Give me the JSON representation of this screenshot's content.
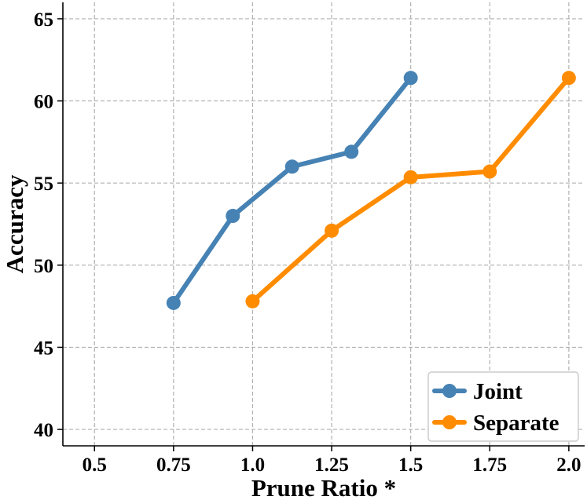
{
  "chart_data": {
    "type": "line",
    "xlabel": "Prune Ratio *",
    "ylabel": "Accuracy",
    "xlim": [
      0.4,
      2.05
    ],
    "ylim": [
      39.0,
      66.0
    ],
    "xticks": [
      0.5,
      0.75,
      1.0,
      1.25,
      1.5,
      1.75,
      2.0
    ],
    "xtick_labels": [
      "0.5",
      "0.75",
      "1.0",
      "1.25",
      "1.5",
      "1.75",
      "2.0"
    ],
    "yticks": [
      40,
      45,
      50,
      55,
      60,
      65
    ],
    "ytick_labels": [
      "40",
      "45",
      "50",
      "55",
      "60",
      "65"
    ],
    "grid": true,
    "legend_position": "bottom-right",
    "series": [
      {
        "name": "Joint",
        "color": "#4682B4",
        "x": [
          0.75,
          0.9375,
          1.125,
          1.3125,
          1.5
        ],
        "y": [
          47.7,
          53.0,
          56.0,
          56.9,
          61.4
        ]
      },
      {
        "name": "Separate",
        "color": "#FF8C00",
        "x": [
          1.0,
          1.25,
          1.5,
          1.75,
          2.0
        ],
        "y": [
          47.8,
          52.1,
          55.35,
          55.7,
          61.4
        ]
      }
    ]
  }
}
